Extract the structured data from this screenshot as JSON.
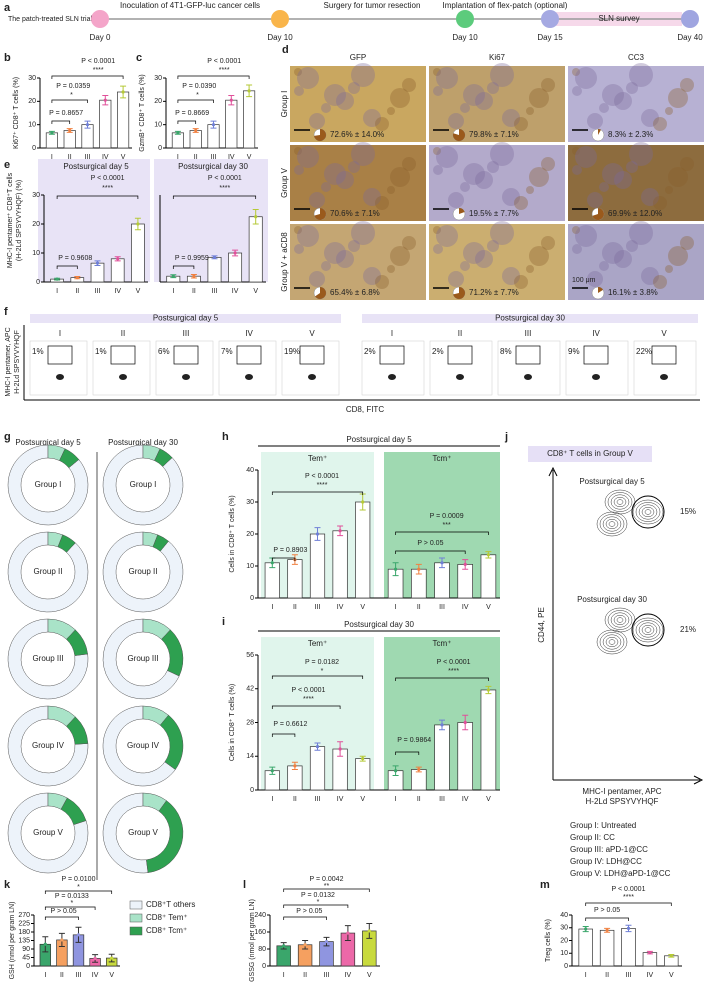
{
  "panel_labels": [
    "a",
    "b",
    "c",
    "d",
    "e",
    "f",
    "g",
    "h",
    "i",
    "j",
    "k",
    "l",
    "m"
  ],
  "timeline": {
    "intro": "The patch-treated SLN trial:",
    "events": [
      "Inoculation of 4T1-GFP-luc cancer cells",
      "Surgery for tumor resection",
      "Implantation of flex-patch (optional)"
    ],
    "days": [
      "Day 0",
      "Day 10",
      "Day 10",
      "Day 15",
      "Day 40"
    ],
    "colors": [
      "#f4a5c9",
      "#f9b54b",
      "#5ccb7c",
      "#a5a9e2",
      "#9fa5e0"
    ],
    "survey": "SLN survey"
  },
  "histology": {
    "columns": [
      "GFP",
      "Ki67",
      "CC3"
    ],
    "rows": [
      "Group I",
      "Group V",
      "Group V + aCD8"
    ],
    "cells": [
      [
        {
          "mean": 72.6,
          "label": "72.6% ± 14.0%"
        },
        {
          "mean": 79.8,
          "label": "79.8% ± 7.1%"
        },
        {
          "mean": 8.3,
          "label": "8.3% ± 2.3%"
        }
      ],
      [
        {
          "mean": 70.6,
          "label": "70.6% ± 7.1%"
        },
        {
          "mean": 19.5,
          "label": "19.5% ± 7.7%"
        },
        {
          "mean": 69.9,
          "label": "69.9% ± 12.0%"
        }
      ],
      [
        {
          "mean": 65.4,
          "label": "65.4% ± 6.8%"
        },
        {
          "mean": 71.2,
          "label": "71.2% ± 7.7%"
        },
        {
          "mean": 16.1,
          "label": "16.1% ± 3.8%"
        }
      ]
    ],
    "pie_color": "#9a5a1c",
    "scale_bar": "100 μm"
  },
  "flow": {
    "panels": [
      {
        "title": "Postsurgical day 5",
        "groups": [
          "I",
          "II",
          "III",
          "IV",
          "V"
        ],
        "labels": [
          "1%",
          "1%",
          "6%",
          "7%",
          "19%"
        ]
      },
      {
        "title": "Postsurgical day 30",
        "groups": [
          "I",
          "II",
          "III",
          "IV",
          "V"
        ],
        "labels": [
          "2%",
          "2%",
          "8%",
          "9%",
          "22%"
        ]
      }
    ],
    "ylabel": [
      "MHC-I pentamer, APC",
      "H-2Ld SPSYVYHQF"
    ],
    "xlabel": "CD8, FITC"
  },
  "contour": {
    "title": "CD8⁺ T cells in Group V",
    "plots": [
      {
        "title": "Postsurgical day 5",
        "label": "15%"
      },
      {
        "title": "Postsurgical day 30",
        "label": "21%"
      }
    ],
    "ylabel": "CD44, PE",
    "xlabel": [
      "MHC-I pentamer, APC",
      "H-2Ld SPSYVYHQF"
    ]
  },
  "group_legend": [
    "Group I: Untreated",
    "Group II: CC",
    "Group III: aPD-1@CC",
    "Group IV: LDH@CC",
    "Group V: LDH@aPD-1@CC"
  ],
  "chart_data": [
    {
      "type": "bar",
      "ylabel": "Ki67⁺ CD8⁺ T cells (%)",
      "categories": [
        "I",
        "II",
        "III",
        "IV",
        "V"
      ],
      "series": [
        {
          "values": [
            6.5,
            7.5,
            10,
            20.5,
            24
          ],
          "errors": [
            0.6,
            0.8,
            1.5,
            2,
            2.5
          ]
        }
      ],
      "ylim": [
        0,
        30
      ],
      "yticks": [
        0,
        10,
        20,
        30
      ],
      "colors": [
        "#3aa66b",
        "#f08040",
        "#6f7fd6",
        "#e0509a",
        "#b5c936"
      ],
      "filled": false,
      "annotations": [
        "P < 0.0001",
        "****",
        "P = 0.0359",
        "*",
        "P = 0.8657"
      ]
    },
    {
      "type": "bar",
      "ylabel": "GzmB⁺ CD8⁺ T cells (%)",
      "categories": [
        "I",
        "II",
        "III",
        "IV",
        "V"
      ],
      "series": [
        {
          "values": [
            6.5,
            7.5,
            10,
            20.5,
            24.5
          ],
          "errors": [
            0.6,
            0.8,
            1.5,
            2,
            2.5
          ]
        }
      ],
      "ylim": [
        0,
        30
      ],
      "yticks": [
        0,
        10,
        20,
        30
      ],
      "colors": [
        "#3aa66b",
        "#f08040",
        "#6f7fd6",
        "#e0509a",
        "#b5c936"
      ],
      "filled": false,
      "annotations": [
        "P < 0.0001",
        "****",
        "P = 0.0390",
        "*",
        "P = 0.8669"
      ]
    },
    {
      "type": "bar",
      "title": "Postsurgical day 5",
      "ylabel": [
        "MHC-I pentamer⁺ CD8⁺T cells",
        "(H-2Ld SPSYVYHQF) (%)"
      ],
      "background": "#e8e3f6",
      "categories": [
        "I",
        "II",
        "III",
        "IV",
        "V"
      ],
      "series": [
        {
          "values": [
            1,
            1.5,
            6.5,
            8,
            20
          ],
          "errors": [
            0.3,
            0.4,
            0.8,
            0.7,
            2
          ]
        }
      ],
      "ylim": [
        0,
        30
      ],
      "yticks": [
        0,
        10,
        20,
        30
      ],
      "colors": [
        "#3aa66b",
        "#f08040",
        "#6f7fd6",
        "#e0509a",
        "#b5c936"
      ],
      "filled": false,
      "annotations": [
        "P < 0.0001",
        "****",
        "P = 0.9608"
      ]
    },
    {
      "type": "bar",
      "title": "Postsurgical day 30",
      "background": "#e8e3f6",
      "categories": [
        "I",
        "II",
        "III",
        "IV",
        "V"
      ],
      "series": [
        {
          "values": [
            2,
            2,
            8.5,
            10,
            22.5
          ],
          "errors": [
            0.5,
            0.6,
            0.5,
            1,
            2.5
          ]
        }
      ],
      "ylim": [
        0,
        30
      ],
      "colors": [
        "#3aa66b",
        "#f08040",
        "#6f7fd6",
        "#e0509a",
        "#b5c936"
      ],
      "filled": false,
      "annotations": [
        "P < 0.0001",
        "****",
        "P = 0.9959"
      ]
    },
    {
      "type": "bar",
      "title": "Postsurgical day 5",
      "ylabel": "Cells in CD8⁺ T cells (%)",
      "categories": [
        "I",
        "II",
        "III",
        "IV",
        "V"
      ],
      "series": [
        {
          "name": "Tem⁺",
          "values": [
            11,
            12,
            20,
            21,
            30
          ],
          "errors": [
            1.5,
            1.5,
            2,
            1.5,
            2.5
          ],
          "background": "#e0f5ec"
        },
        {
          "name": "Tcm⁺",
          "values": [
            9,
            9,
            11,
            10.5,
            13.5
          ],
          "errors": [
            2,
            1.5,
            1.5,
            1.5,
            1
          ],
          "background": "#9fd9b1"
        }
      ],
      "ylim": [
        0,
        40
      ],
      "yticks": [
        0,
        10,
        20,
        30,
        40
      ],
      "colors": [
        "#3aa66b",
        "#f08040",
        "#6f7fd6",
        "#e0509a",
        "#b5c936"
      ],
      "filled": false,
      "annotations": [
        "P < 0.0001",
        "****",
        "P = 0.8903",
        "P = 0.0009",
        "***",
        "P > 0.05"
      ]
    },
    {
      "type": "bar",
      "title": "Postsurgical day 30",
      "ylabel": "Cells in CD8⁺ T cells (%)",
      "categories": [
        "I",
        "II",
        "III",
        "IV",
        "V"
      ],
      "series": [
        {
          "name": "Tem⁺",
          "values": [
            8,
            10,
            18,
            17,
            13
          ],
          "errors": [
            1.5,
            1.5,
            1.5,
            3,
            1
          ],
          "background": "#e0f5ec"
        },
        {
          "name": "Tcm⁺",
          "values": [
            8,
            8.5,
            27,
            28,
            41.5
          ],
          "errors": [
            2,
            1,
            2,
            3,
            1.5
          ],
          "background": "#9fd9b1"
        }
      ],
      "ylim": [
        0,
        56
      ],
      "yticks": [
        0,
        14,
        28,
        42,
        56
      ],
      "colors": [
        "#3aa66b",
        "#f08040",
        "#6f7fd6",
        "#e0509a",
        "#b5c936"
      ],
      "filled": false,
      "annotations": [
        "P = 0.0182",
        "*",
        "P < 0.0001",
        "****",
        "P = 0.6612",
        "P < 0.0001",
        "****",
        "P = 0.9864"
      ]
    },
    {
      "type": "bar",
      "ylabel": "GSH (nmol per gram LN)",
      "categories": [
        "I",
        "II",
        "III",
        "IV",
        "V"
      ],
      "series": [
        {
          "values": [
            115,
            138,
            165,
            40,
            42
          ],
          "errors": [
            40,
            35,
            40,
            20,
            20
          ]
        }
      ],
      "ylim": [
        0,
        270
      ],
      "yticks": [
        0,
        45,
        90,
        135,
        180,
        225,
        270
      ],
      "colors": [
        "#3aa66b",
        "#f5a060",
        "#8f95e0",
        "#ec68a8",
        "#c8da3e"
      ],
      "filled": true,
      "annotations": [
        "P = 0.0100",
        "*",
        "P = 0.0133",
        "*",
        "P > 0.05"
      ]
    },
    {
      "type": "bar",
      "ylabel": "GSSG (nmol per gram LN)",
      "categories": [
        "I",
        "II",
        "III",
        "IV",
        "V"
      ],
      "series": [
        {
          "values": [
            95,
            100,
            115,
            155,
            165
          ],
          "errors": [
            15,
            20,
            20,
            35,
            35
          ]
        }
      ],
      "ylim": [
        0,
        240
      ],
      "yticks": [
        0,
        80,
        160,
        240
      ],
      "colors": [
        "#3aa66b",
        "#f5a060",
        "#8f95e0",
        "#ec68a8",
        "#c8da3e"
      ],
      "filled": true,
      "annotations": [
        "P = 0.0042",
        "**",
        "P = 0.0132",
        "*",
        "P > 0.05"
      ]
    },
    {
      "type": "bar",
      "ylabel": "Treg cells (%)",
      "categories": [
        "I",
        "II",
        "III",
        "IV",
        "V"
      ],
      "series": [
        {
          "values": [
            29,
            28,
            29.5,
            10.5,
            8
          ],
          "errors": [
            2,
            1.5,
            2.5,
            1,
            1
          ]
        }
      ],
      "ylim": [
        0,
        40
      ],
      "yticks": [
        0,
        10,
        20,
        30,
        40
      ],
      "colors": [
        "#3aa66b",
        "#f08040",
        "#6f7fd6",
        "#e0509a",
        "#b5c936"
      ],
      "filled": false,
      "annotations": [
        "P < 0.0001",
        "****",
        "P > 0.05"
      ]
    },
    {
      "type": "donut",
      "columns": [
        "Postsurgical day 5",
        "Postsurgical day 30"
      ],
      "groups": [
        "Group I",
        "Group II",
        "Group III",
        "Group IV",
        "Group V"
      ],
      "series": [
        {
          "name": "CD8⁺T others",
          "color": "#edf3fa",
          "values": [
            [
              86,
              88,
              77,
              76,
              80
            ],
            [
              87,
              89,
              68,
              65,
              52
            ]
          ]
        },
        {
          "name": "CD8⁺ Tem⁺",
          "color": "#a9e3c8",
          "values": [
            [
              7,
              6,
              12,
              12,
              8
            ],
            [
              7,
              6,
              12,
              11,
              10
            ]
          ]
        },
        {
          "name": "CD8⁺ Tcm⁺",
          "color": "#2ea050",
          "values": [
            [
              7,
              6,
              11,
              12,
              12
            ],
            [
              6,
              5,
              20,
              24,
              38
            ]
          ]
        }
      ]
    }
  ]
}
